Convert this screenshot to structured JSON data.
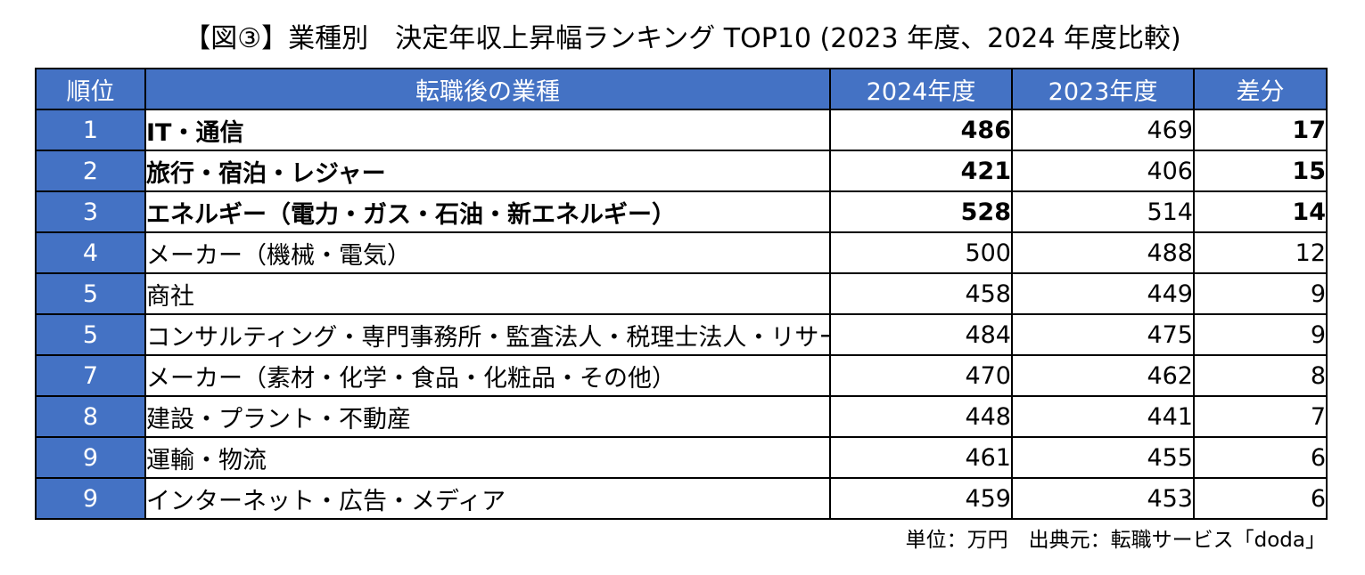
{
  "title": "【図③】業種別　決定年収上昇幅ランキング TOP10 (2023 年度、2024 年度比較)",
  "note": "単位：万円　出典元：転職サービス「doda」",
  "chart_data": {
    "type": "table",
    "title": "【図③】業種別　決定年収上昇幅ランキング TOP10 (2023 年度、2024 年度比較)",
    "columns": [
      "順位",
      "転職後の業種",
      "2024年度",
      "2023年度",
      "差分"
    ],
    "rows": [
      {
        "rank": "1",
        "industry": "IT・通信",
        "v2024": "486",
        "v2023": "469",
        "diff": "17",
        "bold": true
      },
      {
        "rank": "2",
        "industry": "旅行・宿泊・レジャー",
        "v2024": "421",
        "v2023": "406",
        "diff": "15",
        "bold": true
      },
      {
        "rank": "3",
        "industry": "エネルギー（電力・ガス・石油・新エネルギー）",
        "v2024": "528",
        "v2023": "514",
        "diff": "14",
        "bold": true
      },
      {
        "rank": "4",
        "industry": "メーカー（機械・電気）",
        "v2024": "500",
        "v2023": "488",
        "diff": "12",
        "bold": false
      },
      {
        "rank": "5",
        "industry": "商社",
        "v2024": "458",
        "v2023": "449",
        "diff": "9",
        "bold": false
      },
      {
        "rank": "5",
        "industry": "コンサルティング・専門事務所・監査法人・税理士法人・リサーチ",
        "v2024": "484",
        "v2023": "475",
        "diff": "9",
        "bold": false
      },
      {
        "rank": "7",
        "industry": "メーカー（素材・化学・食品・化粧品・その他）",
        "v2024": "470",
        "v2023": "462",
        "diff": "8",
        "bold": false
      },
      {
        "rank": "8",
        "industry": "建設・プラント・不動産",
        "v2024": "448",
        "v2023": "441",
        "diff": "7",
        "bold": false
      },
      {
        "rank": "9",
        "industry": "運輸・物流",
        "v2024": "461",
        "v2023": "455",
        "diff": "6",
        "bold": false
      },
      {
        "rank": "9",
        "industry": "インターネット・広告・メディア",
        "v2024": "459",
        "v2023": "453",
        "diff": "6",
        "bold": false
      }
    ],
    "colors": {
      "header_bg": "#4472c4",
      "header_text": "#ffffff",
      "rank_bg": "#4472c4",
      "border": "#000000"
    }
  }
}
